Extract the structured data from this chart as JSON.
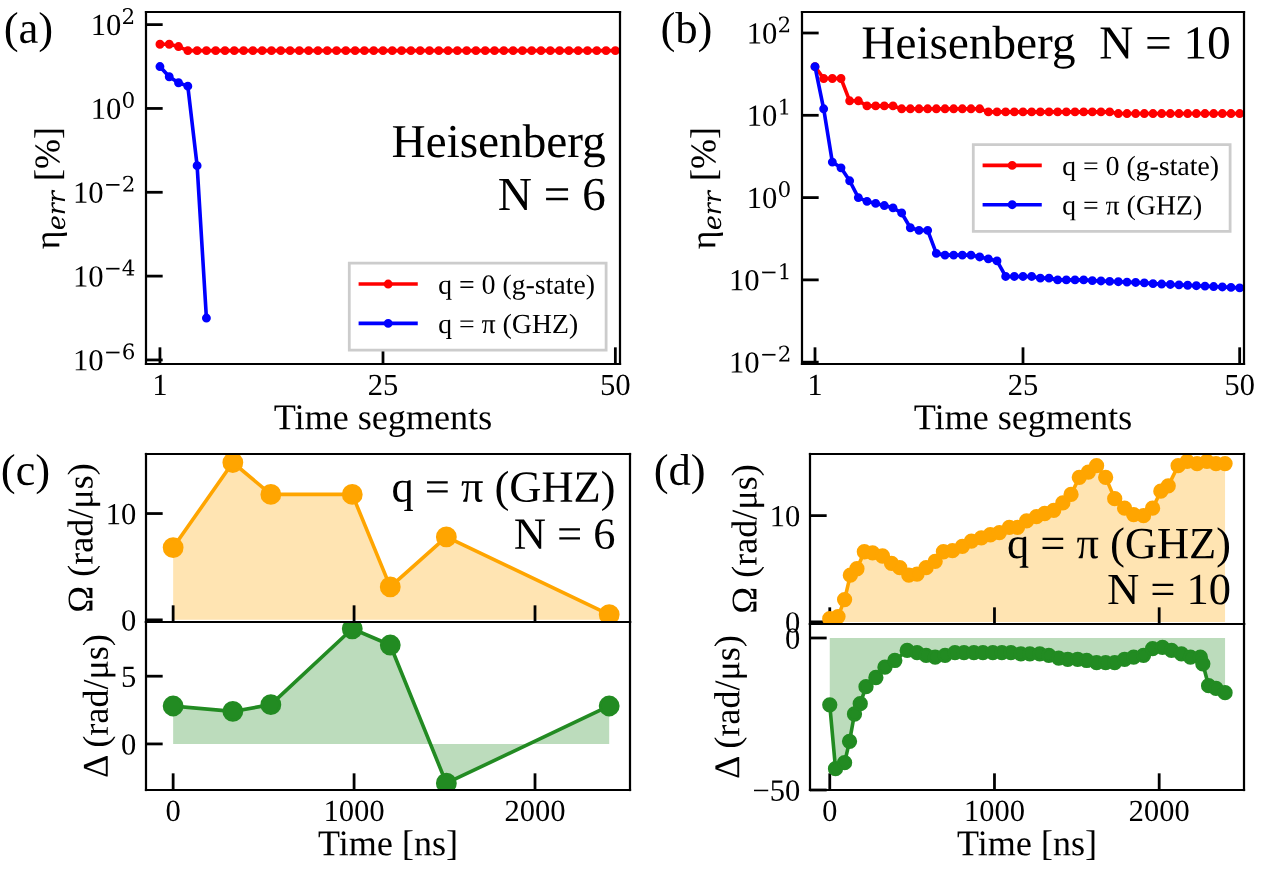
{
  "chart_data": [
    {
      "type": "line",
      "xlabel": "Time segments",
      "ylabel": "η$_{err}$ [%]",
      "log": "y",
      "marker": "circle",
      "line_style": "solid",
      "legend": "lower right",
      "grid": false,
      "annotations": [
        "(a)",
        "Heisenberg",
        "N = 6"
      ],
      "xlim": [
        -0.5,
        50.5
      ],
      "xticks": [
        1,
        25,
        50
      ],
      "ylim": [
        8e-07,
        200
      ],
      "yticks": [
        {
          "value": 1e-06,
          "label": "10$^{−6}$"
        },
        {
          "value": 0.0001,
          "label": "10$^{−4}$"
        },
        {
          "value": 0.01,
          "label": "10$^{−2}$"
        },
        {
          "value": 1,
          "label": "10$^{0}$"
        },
        {
          "value": 100,
          "label": "10$^{2}$"
        }
      ],
      "series": [
        {
          "name": "q = 0 (g-state)",
          "color": "#ff0000",
          "x": [
            1,
            2,
            3,
            4,
            5,
            6,
            7,
            8,
            9,
            10,
            11,
            12,
            13,
            14,
            15,
            16,
            17,
            18,
            19,
            20,
            21,
            22,
            23,
            24,
            25,
            26,
            27,
            28,
            29,
            30,
            31,
            32,
            33,
            34,
            35,
            36,
            37,
            38,
            39,
            40,
            41,
            42,
            43,
            44,
            45,
            46,
            47,
            48,
            49,
            50
          ],
          "values": [
            34,
            34,
            30,
            24,
            24,
            24,
            24,
            24,
            24,
            24,
            24,
            24,
            24,
            24,
            24,
            24,
            24,
            24,
            24,
            24,
            24,
            24,
            24,
            24,
            24,
            24,
            24,
            24,
            24,
            24,
            24,
            24,
            24,
            24,
            24,
            24,
            24,
            24,
            24,
            24,
            24,
            24,
            24,
            24,
            24,
            24,
            24,
            24,
            24,
            24
          ]
        },
        {
          "name": "q = π (GHZ)",
          "color": "#0000ff",
          "x": [
            1,
            2,
            3,
            4,
            5,
            6
          ],
          "values": [
            10,
            5.7,
            4.1,
            3.4,
            0.043,
            1e-05
          ]
        }
      ]
    },
    {
      "type": "line",
      "xlabel": "Time segments",
      "ylabel": "η$_{err}$ [%]",
      "log": "y",
      "marker": "circle",
      "line_style": "solid",
      "legend": "center right",
      "grid": false,
      "annotations": [
        "(b)",
        "Heisenberg  N = 10"
      ],
      "xlim": [
        -0.5,
        50.5
      ],
      "xticks": [
        1,
        25,
        50
      ],
      "ylim": [
        0.0095,
        180
      ],
      "yticks": [
        {
          "value": 0.01,
          "label": "10$^{−2}$"
        },
        {
          "value": 0.1,
          "label": "10$^{−1}$"
        },
        {
          "value": 1,
          "label": "10$^{0}$"
        },
        {
          "value": 10,
          "label": "10$^{1}$"
        },
        {
          "value": 100,
          "label": "10$^{2}$"
        }
      ],
      "series": [
        {
          "name": "q = 0 (g-state)",
          "color": "#ff0000",
          "x": [
            1,
            2,
            3,
            4,
            5,
            6,
            7,
            8,
            9,
            10,
            11,
            12,
            13,
            14,
            15,
            16,
            17,
            18,
            19,
            20,
            21,
            22,
            23,
            24,
            25,
            26,
            27,
            28,
            29,
            30,
            31,
            32,
            33,
            34,
            35,
            36,
            37,
            38,
            39,
            40,
            41,
            42,
            43,
            44,
            45,
            46,
            47,
            48,
            49,
            50
          ],
          "values": [
            39,
            28,
            28,
            28,
            15,
            15,
            13,
            13,
            13,
            13,
            12,
            12,
            12,
            12,
            12,
            12,
            12,
            12,
            12,
            12,
            11,
            11,
            11,
            11,
            11,
            11,
            11,
            11,
            11,
            11,
            11,
            11,
            11,
            11,
            11,
            10.5,
            10.5,
            10.5,
            10.5,
            10.5,
            10.5,
            10.5,
            10.5,
            10.5,
            10.5,
            10.5,
            10.5,
            10.5,
            10.5,
            10.5
          ]
        },
        {
          "name": "q = π (GHZ)",
          "color": "#0000ff",
          "x": [
            1,
            2,
            3,
            4,
            5,
            6,
            7,
            8,
            9,
            10,
            11,
            12,
            13,
            14,
            15,
            16,
            17,
            18,
            19,
            20,
            21,
            22,
            23,
            24,
            25,
            26,
            27,
            28,
            29,
            30,
            31,
            32,
            33,
            34,
            35,
            36,
            37,
            38,
            39,
            40,
            41,
            42,
            43,
            44,
            45,
            46,
            47,
            48,
            49,
            50
          ],
          "values": [
            39,
            12,
            2.7,
            2.3,
            1.6,
            1.0,
            0.9,
            0.85,
            0.8,
            0.75,
            0.65,
            0.43,
            0.4,
            0.4,
            0.21,
            0.2,
            0.2,
            0.2,
            0.2,
            0.19,
            0.18,
            0.17,
            0.11,
            0.11,
            0.11,
            0.11,
            0.105,
            0.105,
            0.1,
            0.1,
            0.1,
            0.1,
            0.098,
            0.097,
            0.096,
            0.095,
            0.094,
            0.093,
            0.092,
            0.09,
            0.089,
            0.088,
            0.087,
            0.086,
            0.085,
            0.084,
            0.083,
            0.082,
            0.081,
            0.08
          ]
        }
      ]
    },
    {
      "type": "area",
      "ylabel": "Ω (rad/μs)",
      "marker": "circle",
      "tick_labels": "y",
      "grid": false,
      "annotations": [
        "(c)",
        "q = π (GHZ)",
        "N = 6"
      ],
      "xlim": [
        -150,
        2525
      ],
      "xticks": [
        0,
        1000,
        2000
      ],
      "ylim": [
        -0.2,
        15.6
      ],
      "yticks": [
        0,
        10
      ],
      "series": [
        {
          "color": "#ffa500",
          "x": [
            0,
            330,
            540,
            990,
            1200,
            1510,
            2410
          ],
          "values": [
            6.8,
            14.8,
            11.8,
            11.8,
            3.1,
            7.8,
            0.5
          ]
        }
      ]
    },
    {
      "type": "area",
      "xlabel": "Time [ns]",
      "ylabel": "Δ (rad/μs)",
      "marker": "circle",
      "grid": false,
      "xlim": [
        -150,
        2525
      ],
      "xticks": [
        0,
        1000,
        2000
      ],
      "ylim": [
        -3.4,
        9
      ],
      "yticks": [
        0,
        5
      ],
      "series": [
        {
          "color": "#228b22",
          "x": [
            0,
            330,
            540,
            990,
            1200,
            1510,
            2410
          ],
          "values": [
            2.8,
            2.4,
            2.9,
            8.5,
            7.3,
            -2.9,
            2.8
          ]
        }
      ]
    },
    {
      "type": "area",
      "ylabel": "Ω (rad/μs)",
      "marker": "circle",
      "tick_labels": "y",
      "grid": false,
      "annotations": [
        "(d)",
        "q = π (GHZ)",
        "N = 10"
      ],
      "xlim": [
        -120,
        2515
      ],
      "xticks": [
        0,
        1000,
        2000
      ],
      "ylim": [
        -0.2,
        15.8
      ],
      "yticks": [
        0,
        10
      ],
      "series": [
        {
          "color": "#ffa500",
          "x": [
            0,
            50,
            90,
            125,
            165,
            210,
            260,
            320,
            375,
            425,
            480,
            530,
            585,
            640,
            690,
            745,
            805,
            860,
            920,
            975,
            1030,
            1090,
            1140,
            1195,
            1255,
            1305,
            1360,
            1415,
            1465,
            1515,
            1570,
            1620,
            1675,
            1730,
            1790,
            1845,
            1905,
            1960,
            2010,
            2055,
            2115,
            2170,
            2230,
            2290,
            2345,
            2400
          ],
          "values": [
            0.3,
            0.5,
            2.1,
            4.4,
            5,
            6.6,
            6.5,
            6.2,
            5.5,
            5.1,
            4.4,
            4.5,
            5.1,
            5.7,
            6.6,
            6.7,
            7.1,
            7.6,
            7.9,
            8.2,
            8.4,
            8.9,
            8.9,
            9.5,
            9.9,
            10.2,
            10.5,
            11.2,
            12,
            13.6,
            14.1,
            14.7,
            13.6,
            11.6,
            10.7,
            10.1,
            10,
            10.7,
            12.3,
            12.8,
            14.7,
            15.1,
            14.9,
            15.1,
            14.9,
            14.9
          ]
        }
      ]
    },
    {
      "type": "area",
      "xlabel": "Time [ns]",
      "ylabel": "Δ (rad/μs)",
      "marker": "circle",
      "grid": false,
      "xlim": [
        -120,
        2515
      ],
      "xticks": [
        0,
        1000,
        2000
      ],
      "ylim": [
        -50,
        4.6
      ],
      "yticks": [
        {
          "value": -50,
          "label": "−50"
        },
        0
      ],
      "series": [
        {
          "color": "#228b22",
          "x": [
            0,
            35,
            90,
            120,
            150,
            185,
            220,
            280,
            335,
            395,
            470,
            530,
            585,
            640,
            700,
            760,
            815,
            875,
            930,
            990,
            1045,
            1100,
            1160,
            1215,
            1275,
            1330,
            1390,
            1445,
            1505,
            1560,
            1620,
            1675,
            1730,
            1790,
            1845,
            1905,
            1960,
            2020,
            2075,
            2135,
            2190,
            2250,
            2265,
            2300,
            2345,
            2400
          ],
          "values": [
            -22,
            -43,
            -41,
            -34,
            -25,
            -21.6,
            -16,
            -13,
            -9.6,
            -7.4,
            -4.1,
            -4.8,
            -5.7,
            -6.3,
            -5.7,
            -4.8,
            -4.8,
            -4.8,
            -4.8,
            -4.8,
            -4.8,
            -4.8,
            -5.2,
            -5.2,
            -5.2,
            -5.7,
            -6.6,
            -7,
            -7,
            -7.4,
            -8.1,
            -8.1,
            -8.1,
            -7,
            -6.3,
            -5.7,
            -3.5,
            -3.1,
            -4.1,
            -5.2,
            -6.3,
            -6.3,
            -8.5,
            -15.7,
            -16.6,
            -18
          ]
        }
      ]
    }
  ]
}
